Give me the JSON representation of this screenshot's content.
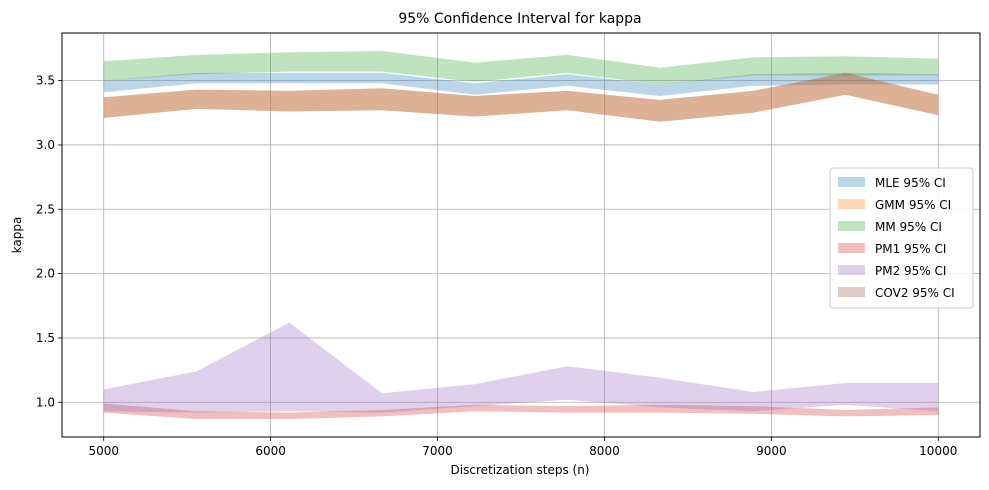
{
  "chart_data": {
    "type": "area",
    "title": "95% Confidence Interval for kappa",
    "xlabel": "Discretization steps (n)",
    "ylabel": "kappa",
    "xlim": [
      4750,
      10250
    ],
    "ylim": [
      0.73,
      3.87
    ],
    "xticks": [
      5000,
      6000,
      7000,
      8000,
      9000,
      10000
    ],
    "yticks": [
      1.0,
      1.5,
      2.0,
      2.5,
      3.0,
      3.5
    ],
    "ytick_labels": [
      "1.0",
      "1.5",
      "2.0",
      "2.5",
      "3.0",
      "3.5"
    ],
    "grid": true,
    "legend_position": "center-right",
    "x": [
      5000,
      5556,
      6111,
      6667,
      7222,
      7778,
      8333,
      8889,
      9444,
      10000
    ],
    "series": [
      {
        "name": "MLE 95% CI",
        "color": "#1f77b4",
        "lower": [
          3.41,
          3.48,
          3.48,
          3.48,
          3.39,
          3.46,
          3.38,
          3.46,
          3.47,
          3.47
        ],
        "upper": [
          3.5,
          3.56,
          3.56,
          3.56,
          3.48,
          3.55,
          3.47,
          3.55,
          3.56,
          3.55
        ]
      },
      {
        "name": "GMM 95% CI",
        "color": "#ff7f0e",
        "lower": [
          3.21,
          3.28,
          3.26,
          3.27,
          3.22,
          3.27,
          3.18,
          3.25,
          3.39,
          3.23
        ],
        "upper": [
          3.37,
          3.43,
          3.42,
          3.44,
          3.38,
          3.42,
          3.35,
          3.42,
          3.56,
          3.39
        ]
      },
      {
        "name": "MM 95% CI",
        "color": "#2ca02c",
        "lower": [
          3.5,
          3.55,
          3.57,
          3.57,
          3.49,
          3.56,
          3.47,
          3.54,
          3.54,
          3.54
        ],
        "upper": [
          3.65,
          3.7,
          3.72,
          3.73,
          3.64,
          3.7,
          3.6,
          3.68,
          3.69,
          3.67
        ]
      },
      {
        "name": "PM1 95% CI",
        "color": "#d62728",
        "lower": [
          0.92,
          0.87,
          0.87,
          0.89,
          0.93,
          0.92,
          0.92,
          0.91,
          0.89,
          0.9
        ],
        "upper": [
          0.99,
          0.93,
          0.92,
          0.94,
          0.98,
          0.97,
          0.98,
          0.97,
          0.94,
          0.96
        ]
      },
      {
        "name": "PM2 95% CI",
        "color": "#9467bd",
        "lower": [
          0.93,
          0.92,
          0.93,
          0.92,
          0.97,
          1.02,
          0.96,
          0.93,
          0.98,
          0.93
        ],
        "upper": [
          1.1,
          1.24,
          1.62,
          1.07,
          1.14,
          1.28,
          1.19,
          1.08,
          1.15,
          1.15
        ]
      },
      {
        "name": "COV2 95% CI",
        "color": "#8c564b",
        "lower": [
          3.21,
          3.28,
          3.26,
          3.27,
          3.22,
          3.27,
          3.18,
          3.25,
          3.39,
          3.23
        ],
        "upper": [
          3.37,
          3.43,
          3.42,
          3.44,
          3.38,
          3.42,
          3.35,
          3.42,
          3.56,
          3.39
        ]
      }
    ]
  }
}
